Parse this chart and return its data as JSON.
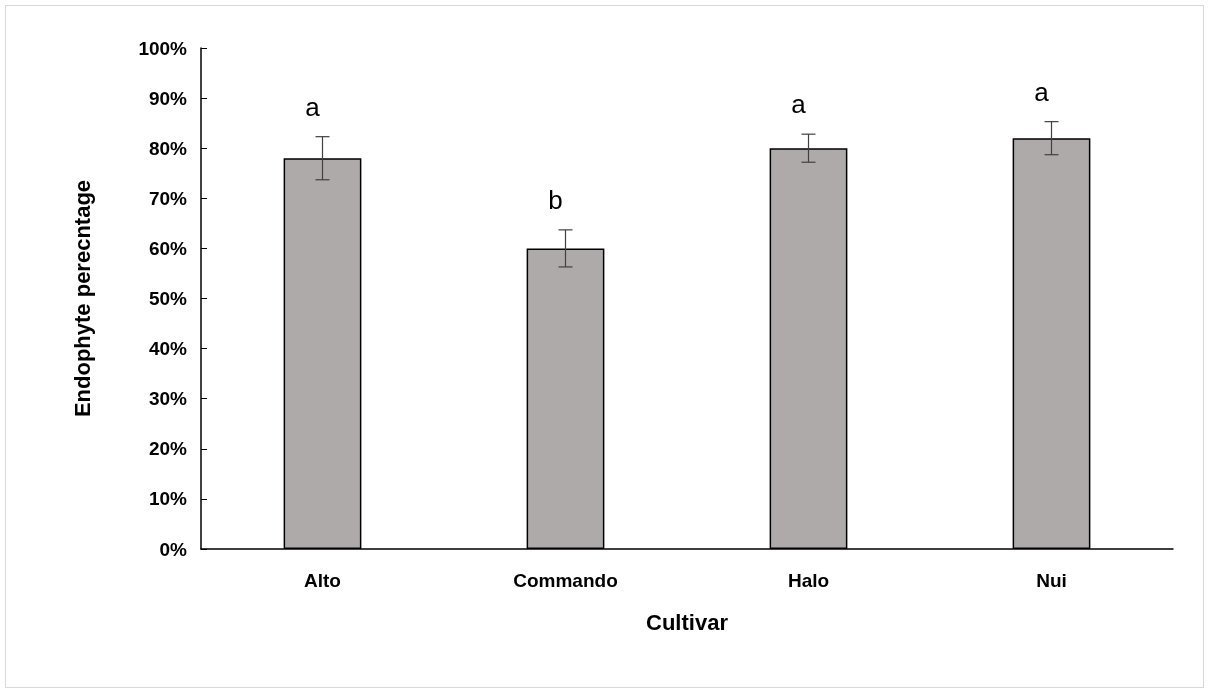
{
  "chart_data": {
    "type": "bar",
    "xlabel": "Cultivar",
    "ylabel": "Endophyte perecntage",
    "categories": [
      "Alto",
      "Commando",
      "Halo",
      "Nui"
    ],
    "values": [
      78,
      60,
      80,
      82
    ],
    "errors": [
      4.3,
      3.7,
      2.8,
      3.3
    ],
    "color": "#aeaaaa",
    "ylim": [
      0,
      100
    ],
    "yticks": [
      {
        "value": 0,
        "label": "0%"
      },
      {
        "value": 10,
        "label": "10%"
      },
      {
        "value": 20,
        "label": "20%"
      },
      {
        "value": 30,
        "label": "30%"
      },
      {
        "value": 40,
        "label": "40%"
      },
      {
        "value": 50,
        "label": "50%"
      },
      {
        "value": 60,
        "label": "60%"
      },
      {
        "value": 70,
        "label": "70%"
      },
      {
        "value": 80,
        "label": "80%"
      },
      {
        "value": 90,
        "label": "90%"
      },
      {
        "value": 100,
        "label": "100%"
      }
    ],
    "annotations": [
      "a",
      "b",
      "a",
      "a"
    ]
  }
}
